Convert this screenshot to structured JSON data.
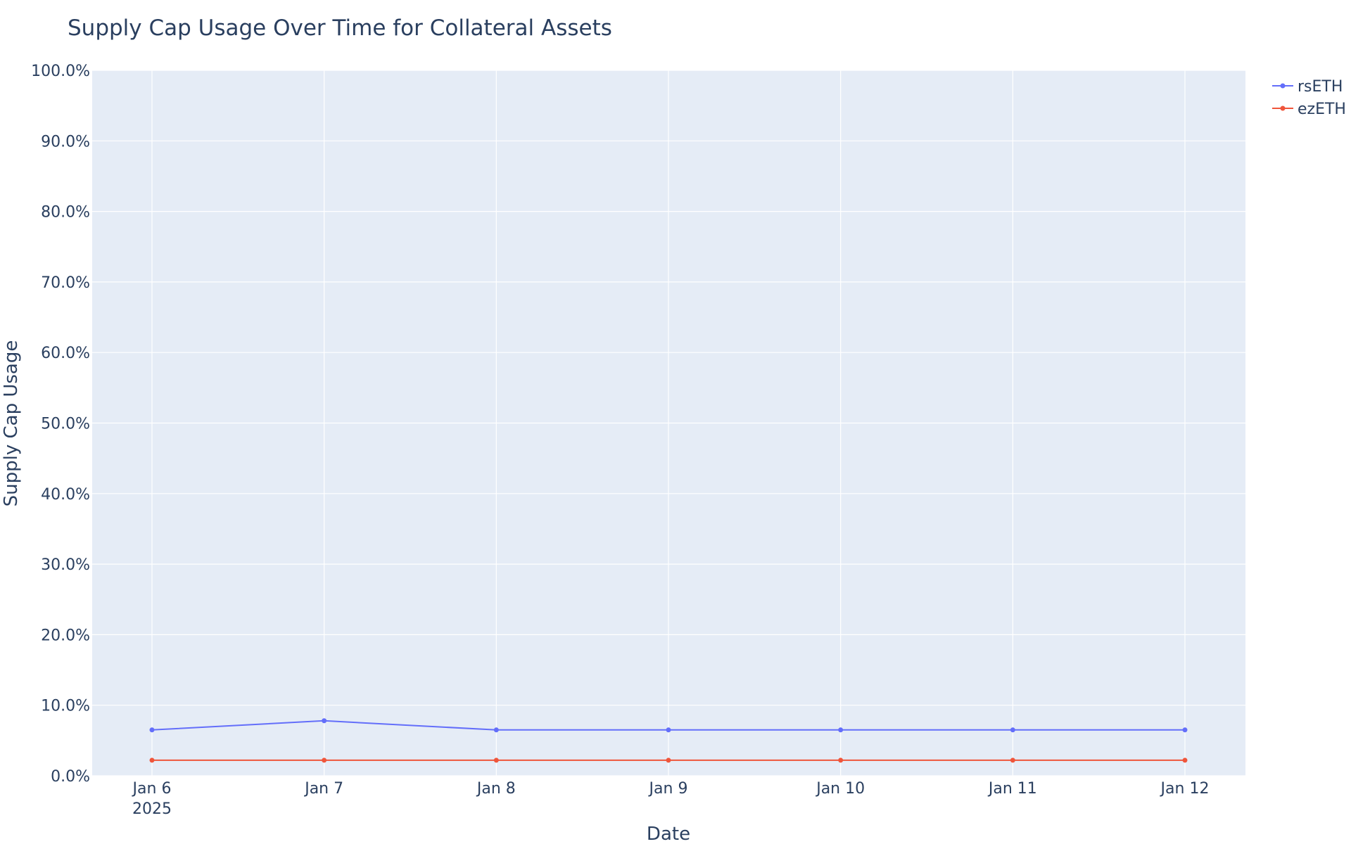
{
  "chart_data": {
    "type": "line",
    "title": "Supply Cap Usage Over Time for Collateral Assets",
    "xlabel": "Date",
    "ylabel": "Supply Cap Usage",
    "x": [
      "2025-01-06",
      "2025-01-07",
      "2025-01-08",
      "2025-01-09",
      "2025-01-10",
      "2025-01-11",
      "2025-01-12"
    ],
    "x_tick_labels": [
      "Jan 6",
      "Jan 7",
      "Jan 8",
      "Jan 9",
      "Jan 10",
      "Jan 11",
      "Jan 12"
    ],
    "x_tick_sublabel": "2025",
    "ylim": [
      0,
      1
    ],
    "y_ticks": [
      0,
      0.1,
      0.2,
      0.3,
      0.4,
      0.5,
      0.6,
      0.7,
      0.8,
      0.9,
      1.0
    ],
    "y_tick_labels": [
      "0.0%",
      "10.0%",
      "20.0%",
      "30.0%",
      "40.0%",
      "50.0%",
      "60.0%",
      "70.0%",
      "80.0%",
      "90.0%",
      "100.0%"
    ],
    "grid": true,
    "legend_position": "top-right",
    "series": [
      {
        "name": "rsETH",
        "color": "#636efa",
        "values": [
          0.065,
          0.078,
          0.065,
          0.065,
          0.065,
          0.065,
          0.065
        ]
      },
      {
        "name": "ezETH",
        "color": "#ef553b",
        "values": [
          0.022,
          0.022,
          0.022,
          0.022,
          0.022,
          0.022,
          0.022
        ]
      }
    ],
    "plot_background": "#e5ecf6",
    "grid_color": "#ffffff",
    "text_color": "#2a3f5f"
  }
}
